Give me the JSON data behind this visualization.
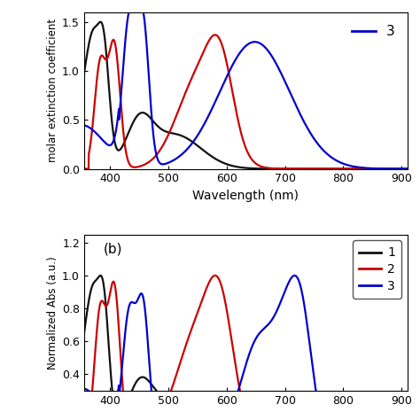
{
  "xlim_a": [
    355,
    910
  ],
  "xlim_b": [
    355,
    910
  ],
  "panel_a": {
    "ylim": [
      0,
      1.6
    ],
    "yticks": [
      0.0,
      0.5,
      1.0,
      1.5
    ],
    "ylabel": "molar extinction coefficient",
    "legend_entries": [
      "3"
    ],
    "legend_colors": [
      "#0000cc"
    ]
  },
  "panel_b": {
    "ylim": [
      0.3,
      1.25
    ],
    "yticks": [
      0.4,
      0.6,
      0.8,
      1.0,
      1.2
    ],
    "ylabel": "Normalized Abs (a.u.)",
    "label": "(b)",
    "legend_entries": [
      "1",
      "2",
      "3"
    ],
    "legend_colors": [
      "#111111",
      "#cc0000",
      "#0000cc"
    ]
  },
  "xlabel": "Wavelength (nm)",
  "xticks": [
    400,
    500,
    600,
    700,
    800,
    900
  ],
  "colors": {
    "black": "#111111",
    "red": "#cc0000",
    "blue": "#0000cc"
  }
}
